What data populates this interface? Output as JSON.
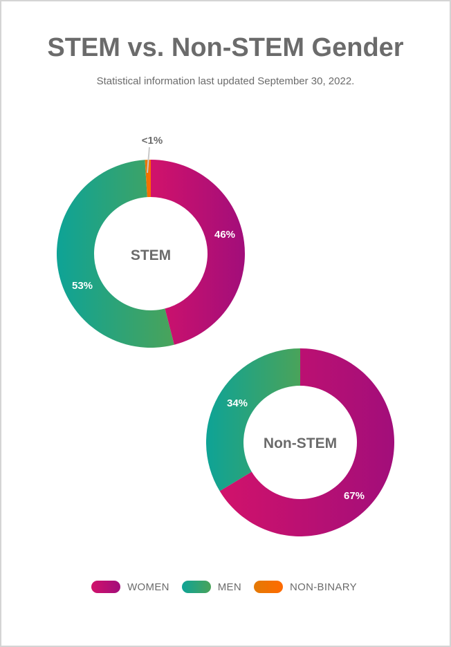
{
  "header": {
    "title": "STEM vs. Non-STEM Gender",
    "subtitle": "Statistical information last updated September 30, 2022."
  },
  "colors": {
    "women": [
      "#d1126b",
      "#a20e7a"
    ],
    "men": [
      "#0ea396",
      "#4aa35a"
    ],
    "non_binary": [
      "#e37a06",
      "#ff6a00"
    ],
    "text": "#6b6b6b",
    "border": "#d4d4d4"
  },
  "legend": [
    {
      "label": "WOMEN",
      "key": "women"
    },
    {
      "label": "MEN",
      "key": "men"
    },
    {
      "label": "NON-BINARY",
      "key": "non_binary"
    }
  ],
  "chart_data": [
    {
      "type": "pie",
      "variant": "donut",
      "title": "STEM",
      "categories": [
        "Women",
        "Men",
        "Non-binary"
      ],
      "values": [
        46,
        53,
        1
      ],
      "labels": [
        "46%",
        "53%",
        "<1%"
      ]
    },
    {
      "type": "pie",
      "variant": "donut",
      "title": "Non-STEM",
      "categories": [
        "Women",
        "Men",
        "Non-binary"
      ],
      "values": [
        67,
        34,
        0
      ],
      "labels": [
        "67%",
        "34%",
        ""
      ]
    }
  ]
}
